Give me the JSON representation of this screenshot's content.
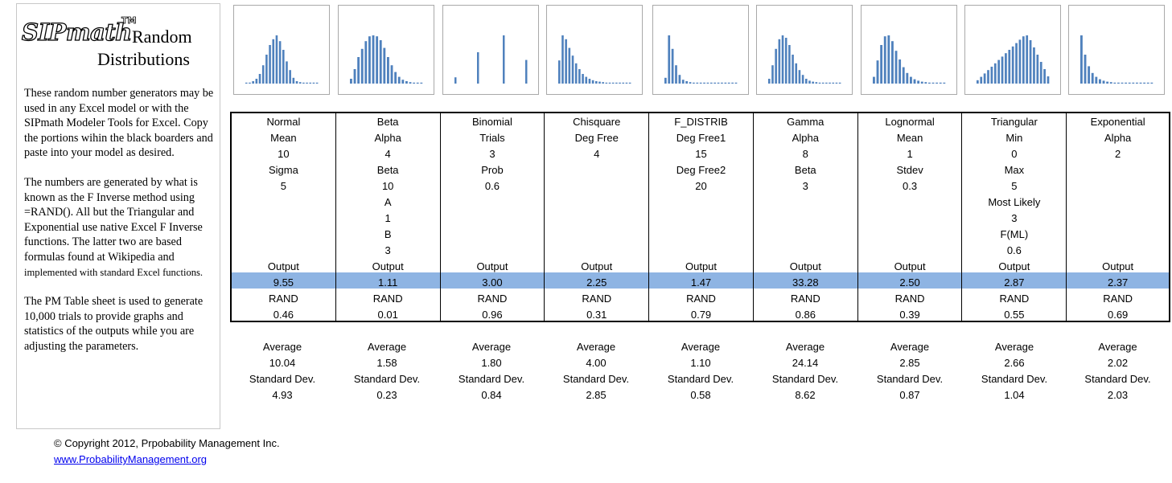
{
  "logo": {
    "brand": "SIPmath",
    "tm": "TM",
    "line1": "Random",
    "line2": "Distributions"
  },
  "description": {
    "p1": "These random number generators may be used in any Excel model or with the SIPmath Modeler Tools for Excel. Copy the portions wihin the black boarders and paste into your model as desired.",
    "p2_main": "The numbers are generated by what is known as the F Inverse method using =RAND(). All but the Triangular and Exponential use native Excel F Inverse functions. The latter two are based formulas found at Wikipedia and",
    "p2_small": "implemented with standard Excel  functions.",
    "p3": "The PM Table sheet is used to generate 10,000 trials to provide graphs and statistics of the outputs while you are adjusting the parameters."
  },
  "footer": {
    "copyright": "© Copyright 2012, Prpobability Management Inc.",
    "link": "www.ProbabilityManagement.org"
  },
  "colors": {
    "bar": "#4f81bd",
    "output_band": "#8eb4e3"
  },
  "distributions": [
    {
      "name": "Normal",
      "params": [
        [
          "Mean",
          "10"
        ],
        [
          "Sigma",
          "5"
        ]
      ],
      "output_label": "Output",
      "output": "9.55",
      "rand_label": "RAND",
      "rand": "0.46",
      "average_label": "Average",
      "average": "10.04",
      "sd_label": "Standard Dev.",
      "sd": "4.93",
      "hist": [
        0.02,
        0.02,
        0.05,
        0.1,
        0.2,
        0.38,
        0.6,
        0.8,
        0.92,
        1.0,
        0.88,
        0.7,
        0.46,
        0.28,
        0.12,
        0.05,
        0.03,
        0.02,
        0.02,
        0.02,
        0.02,
        0.02
      ]
    },
    {
      "name": "Beta",
      "params": [
        [
          "Alpha",
          "4"
        ],
        [
          "Beta",
          "10"
        ],
        [
          "A",
          "1"
        ],
        [
          "B",
          "3"
        ]
      ],
      "output_label": "Output",
      "output": "1.11",
      "rand_label": "RAND",
      "rand": "0.01",
      "average_label": "Average",
      "average": "1.58",
      "sd_label": "Standard Dev.",
      "sd": "0.23",
      "hist": [
        0.1,
        0.3,
        0.55,
        0.72,
        0.88,
        0.98,
        1.0,
        0.98,
        0.9,
        0.74,
        0.55,
        0.38,
        0.24,
        0.14,
        0.08,
        0.05,
        0.03,
        0.02,
        0.02,
        0.02
      ]
    },
    {
      "name": "Binomial",
      "params": [
        [
          "Trials",
          "3"
        ],
        [
          "Prob",
          "0.6"
        ]
      ],
      "output_label": "Output",
      "output": "3.00",
      "rand_label": "RAND",
      "rand": "0.96",
      "average_label": "Average",
      "average": "1.80",
      "sd_label": "Standard Dev.",
      "sd": "0.84",
      "hist": [
        0.13,
        0,
        0,
        0,
        0,
        0,
        0,
        0.65,
        0,
        0,
        0,
        0,
        0,
        0,
        0,
        1.0,
        0,
        0,
        0,
        0,
        0,
        0,
        0.49
      ]
    },
    {
      "name": "Chisquare",
      "params": [
        [
          "Deg Free",
          "4"
        ]
      ],
      "output_label": "Output",
      "output": "2.25",
      "rand_label": "RAND",
      "rand": "0.31",
      "average_label": "Average",
      "average": "4.00",
      "sd_label": "Standard Dev.",
      "sd": "2.85",
      "hist": [
        0.48,
        1.0,
        0.92,
        0.74,
        0.58,
        0.42,
        0.3,
        0.2,
        0.14,
        0.1,
        0.07,
        0.05,
        0.04,
        0.03,
        0.02,
        0.02,
        0.02,
        0.02,
        0.02,
        0.02,
        0.02,
        0.02
      ]
    },
    {
      "name": "F_DISTRIB",
      "params": [
        [
          "Deg Free1",
          "15"
        ],
        [
          "Deg Free2",
          "20"
        ]
      ],
      "output_label": "Output",
      "output": "1.47",
      "rand_label": "RAND",
      "rand": "0.79",
      "average_label": "Average",
      "average": "1.10",
      "sd_label": "Standard Dev.",
      "sd": "0.58",
      "hist": [
        0.12,
        1.0,
        0.72,
        0.38,
        0.18,
        0.08,
        0.05,
        0.03,
        0.02,
        0.02,
        0.02,
        0.02,
        0.02,
        0.02,
        0.02,
        0.02,
        0.02,
        0.02,
        0.02,
        0.02,
        0.02
      ]
    },
    {
      "name": "Gamma",
      "params": [
        [
          "Alpha",
          "8"
        ],
        [
          "Beta",
          "3"
        ]
      ],
      "output_label": "Output",
      "output": "33.28",
      "rand_label": "RAND",
      "rand": "0.86",
      "average_label": "Average",
      "average": "24.14",
      "sd_label": "Standard Dev.",
      "sd": "8.62",
      "hist": [
        0.1,
        0.38,
        0.72,
        0.92,
        1.0,
        0.95,
        0.8,
        0.6,
        0.42,
        0.28,
        0.18,
        0.1,
        0.06,
        0.04,
        0.03,
        0.02,
        0.02,
        0.02,
        0.02,
        0.02,
        0.02,
        0.02
      ]
    },
    {
      "name": "Lognormal",
      "params": [
        [
          "Mean",
          "1"
        ],
        [
          "Stdev",
          "0.3"
        ]
      ],
      "output_label": "Output",
      "output": "2.50",
      "rand_label": "RAND",
      "rand": "0.39",
      "average_label": "Average",
      "average": "2.85",
      "sd_label": "Standard Dev.",
      "sd": "0.87",
      "hist": [
        0.14,
        0.48,
        0.8,
        0.98,
        1.0,
        0.88,
        0.68,
        0.5,
        0.34,
        0.22,
        0.14,
        0.09,
        0.06,
        0.04,
        0.03,
        0.02,
        0.02,
        0.02,
        0.02,
        0.02
      ]
    },
    {
      "name": "Triangular",
      "params": [
        [
          "Min",
          "0"
        ],
        [
          "Max",
          "5"
        ],
        [
          "Most Likely",
          "3"
        ],
        [
          "F(ML)",
          "0.6"
        ]
      ],
      "output_label": "Output",
      "output": "2.87",
      "rand_label": "RAND",
      "rand": "0.55",
      "average_label": "Average",
      "average": "2.66",
      "sd_label": "Standard Dev.",
      "sd": "1.04",
      "hist": [
        0.07,
        0.14,
        0.21,
        0.28,
        0.35,
        0.42,
        0.49,
        0.56,
        0.63,
        0.7,
        0.77,
        0.84,
        0.91,
        0.98,
        1.0,
        0.9,
        0.75,
        0.6,
        0.45,
        0.3,
        0.15
      ]
    },
    {
      "name": "Exponential",
      "params": [
        [
          "Alpha",
          "2"
        ]
      ],
      "output_label": "Output",
      "output": "2.37",
      "rand_label": "RAND",
      "rand": "0.69",
      "average_label": "Average",
      "average": "2.02",
      "sd_label": "Standard Dev.",
      "sd": "2.03",
      "hist": [
        1.0,
        0.6,
        0.36,
        0.22,
        0.14,
        0.09,
        0.06,
        0.04,
        0.03,
        0.02,
        0.02,
        0.02,
        0.02,
        0.02,
        0.02,
        0.02,
        0.02,
        0.02,
        0.02,
        0.02
      ]
    }
  ]
}
